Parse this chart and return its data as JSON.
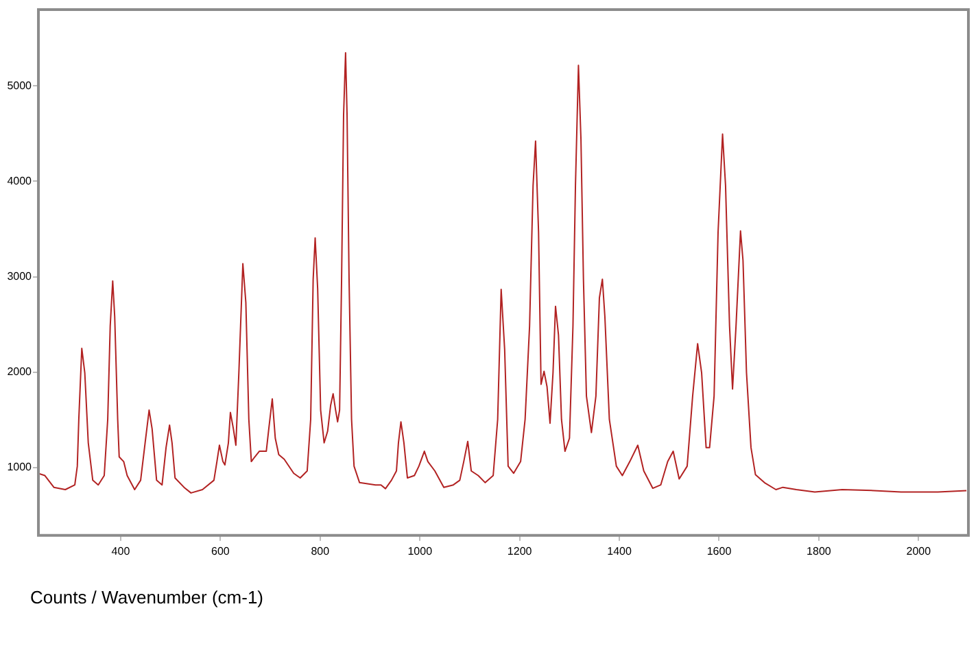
{
  "chart_data": {
    "type": "line",
    "xlabel": "Counts / Wavenumber (cm-1)",
    "marker": "none",
    "line_style": "solid",
    "legend": false,
    "grid": false,
    "xlim": [
      235,
      2100
    ],
    "ylim": [
      290,
      5800
    ],
    "xticks": [
      400,
      600,
      800,
      1000,
      1200,
      1400,
      1600,
      1800,
      2000
    ],
    "yticks": [
      1000,
      2000,
      3000,
      4000,
      5000
    ],
    "x": [
      235,
      248,
      266,
      289,
      308,
      313,
      316,
      322,
      328,
      335,
      344,
      355,
      367,
      374,
      379,
      384,
      388,
      394,
      397,
      406,
      413,
      428,
      440,
      449,
      457,
      463,
      472,
      483,
      491,
      498,
      503,
      509,
      527,
      541,
      564,
      587,
      593,
      598,
      605,
      609,
      616,
      620,
      626,
      631,
      637,
      645,
      651,
      657,
      662,
      669,
      678,
      692,
      697,
      704,
      710,
      717,
      728,
      747,
      760,
      774,
      781,
      786,
      790,
      795,
      801,
      808,
      815,
      821,
      826,
      831,
      835,
      839,
      843,
      847,
      851,
      854,
      858,
      863,
      868,
      879,
      911,
      922,
      931,
      943,
      953,
      957,
      962,
      968,
      975,
      989,
      998,
      1009,
      1016,
      1030,
      1048,
      1067,
      1080,
      1088,
      1096,
      1103,
      1117,
      1131,
      1147,
      1156,
      1163,
      1170,
      1177,
      1188,
      1202,
      1211,
      1220,
      1227,
      1232,
      1238,
      1243,
      1249,
      1255,
      1261,
      1267,
      1272,
      1278,
      1284,
      1291,
      1300,
      1307,
      1312,
      1318,
      1323,
      1328,
      1334,
      1344,
      1353,
      1360,
      1366,
      1371,
      1380,
      1394,
      1406,
      1421,
      1437,
      1449,
      1467,
      1483,
      1497,
      1508,
      1520,
      1536,
      1547,
      1557,
      1565,
      1574,
      1581,
      1590,
      1598,
      1607,
      1613,
      1621,
      1627,
      1634,
      1643,
      1648,
      1655,
      1664,
      1673,
      1691,
      1714,
      1728,
      1755,
      1792,
      1847,
      1911,
      1965,
      2039,
      2096
    ],
    "series": [
      {
        "color": "#b22222",
        "values": [
          940,
          917,
          794,
          770,
          819,
          1015,
          1505,
          2250,
          1995,
          1260,
          868,
          819,
          917,
          1505,
          2485,
          2956,
          2583,
          1505,
          1113,
          1064,
          917,
          770,
          868,
          1260,
          1603,
          1407,
          868,
          819,
          1211,
          1446,
          1260,
          892,
          794,
          735,
          770,
          868,
          1064,
          1235,
          1064,
          1029,
          1260,
          1578,
          1407,
          1235,
          1995,
          3137,
          2730,
          1505,
          1064,
          1113,
          1172,
          1172,
          1407,
          1721,
          1309,
          1137,
          1088,
          941,
          892,
          966,
          1505,
          2975,
          3407,
          2877,
          1603,
          1260,
          1382,
          1652,
          1775,
          1603,
          1480,
          1603,
          2975,
          4691,
          5348,
          4691,
          2975,
          1505,
          1015,
          843,
          819,
          819,
          780,
          868,
          966,
          1260,
          1480,
          1260,
          892,
          917,
          1015,
          1172,
          1064,
          966,
          794,
          819,
          868,
          1064,
          1275,
          966,
          917,
          843,
          917,
          1505,
          2868,
          2240,
          1015,
          941,
          1064,
          1505,
          2485,
          3956,
          4422,
          3466,
          1873,
          2010,
          1848,
          1466,
          1995,
          2691,
          2387,
          1505,
          1172,
          1309,
          2485,
          3956,
          5216,
          4446,
          2975,
          1750,
          1368,
          1750,
          2779,
          2975,
          2583,
          1505,
          1015,
          917,
          1064,
          1235,
          966,
          784,
          819,
          1064,
          1172,
          882,
          1015,
          1750,
          2299,
          1995,
          1211,
          1211,
          1750,
          3466,
          4495,
          3956,
          2485,
          1824,
          2485,
          3480,
          3172,
          1995,
          1211,
          926,
          843,
          770,
          794,
          770,
          745,
          770,
          760,
          745,
          745,
          760
        ]
      }
    ]
  }
}
